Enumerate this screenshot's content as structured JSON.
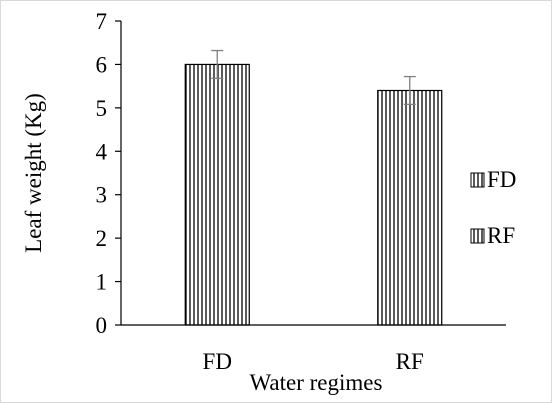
{
  "chart_data": {
    "type": "bar",
    "title": "",
    "xlabel": "Water regimes",
    "ylabel": "Leaf weight (Kg)",
    "ylim": [
      0,
      7
    ],
    "yticks": [
      "0",
      "1",
      "2",
      "3",
      "4",
      "5",
      "6",
      "7"
    ],
    "categories": [
      "FD",
      "RF"
    ],
    "values": [
      6.0,
      5.4
    ],
    "errors": [
      0.32,
      0.32
    ],
    "grid": false,
    "legend_position": "right",
    "legend": [
      "FD",
      "RF"
    ],
    "bar_pattern": "vertical-stripes",
    "colors": {
      "stroke": "#000000",
      "fill": "#ffffff",
      "error_bar": "#7f7f7f",
      "frame": "#d9d9d9"
    }
  }
}
